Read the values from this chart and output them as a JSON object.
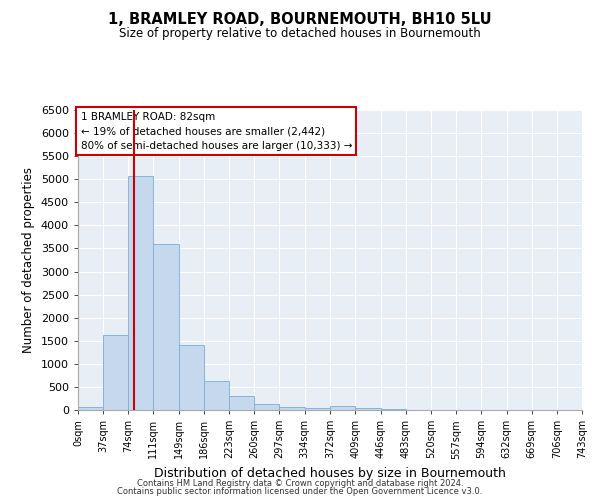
{
  "title": "1, BRAMLEY ROAD, BOURNEMOUTH, BH10 5LU",
  "subtitle": "Size of property relative to detached houses in Bournemouth",
  "xlabel": "Distribution of detached houses by size in Bournemouth",
  "ylabel": "Number of detached properties",
  "bin_edges": [
    0,
    37,
    74,
    111,
    149,
    186,
    223,
    260,
    297,
    334,
    372,
    409,
    446,
    483,
    520,
    557,
    594,
    632,
    669,
    706,
    743
  ],
  "bar_heights": [
    75,
    1625,
    5075,
    3600,
    1400,
    625,
    300,
    135,
    75,
    50,
    80,
    50,
    30,
    10,
    5,
    5,
    5,
    5,
    5,
    5
  ],
  "bar_color": "#c5d8ee",
  "bar_edge_color": "#7aadd4",
  "vline_x": 82,
  "vline_color": "#cc0000",
  "ylim": [
    0,
    6500
  ],
  "yticks": [
    0,
    500,
    1000,
    1500,
    2000,
    2500,
    3000,
    3500,
    4000,
    4500,
    5000,
    5500,
    6000,
    6500
  ],
  "annotation_title": "1 BRAMLEY ROAD: 82sqm",
  "annotation_line1": "← 19% of detached houses are smaller (2,442)",
  "annotation_line2": "80% of semi-detached houses are larger (10,333) →",
  "annotation_box_color": "#ffffff",
  "annotation_border_color": "#cc0000",
  "bg_color": "#e8eef5",
  "footer1": "Contains HM Land Registry data © Crown copyright and database right 2024.",
  "footer2": "Contains public sector information licensed under the Open Government Licence v3.0.",
  "tick_labels": [
    "0sqm",
    "37sqm",
    "74sqm",
    "111sqm",
    "149sqm",
    "186sqm",
    "223sqm",
    "260sqm",
    "297sqm",
    "334sqm",
    "372sqm",
    "409sqm",
    "446sqm",
    "483sqm",
    "520sqm",
    "557sqm",
    "594sqm",
    "632sqm",
    "669sqm",
    "706sqm",
    "743sqm"
  ]
}
